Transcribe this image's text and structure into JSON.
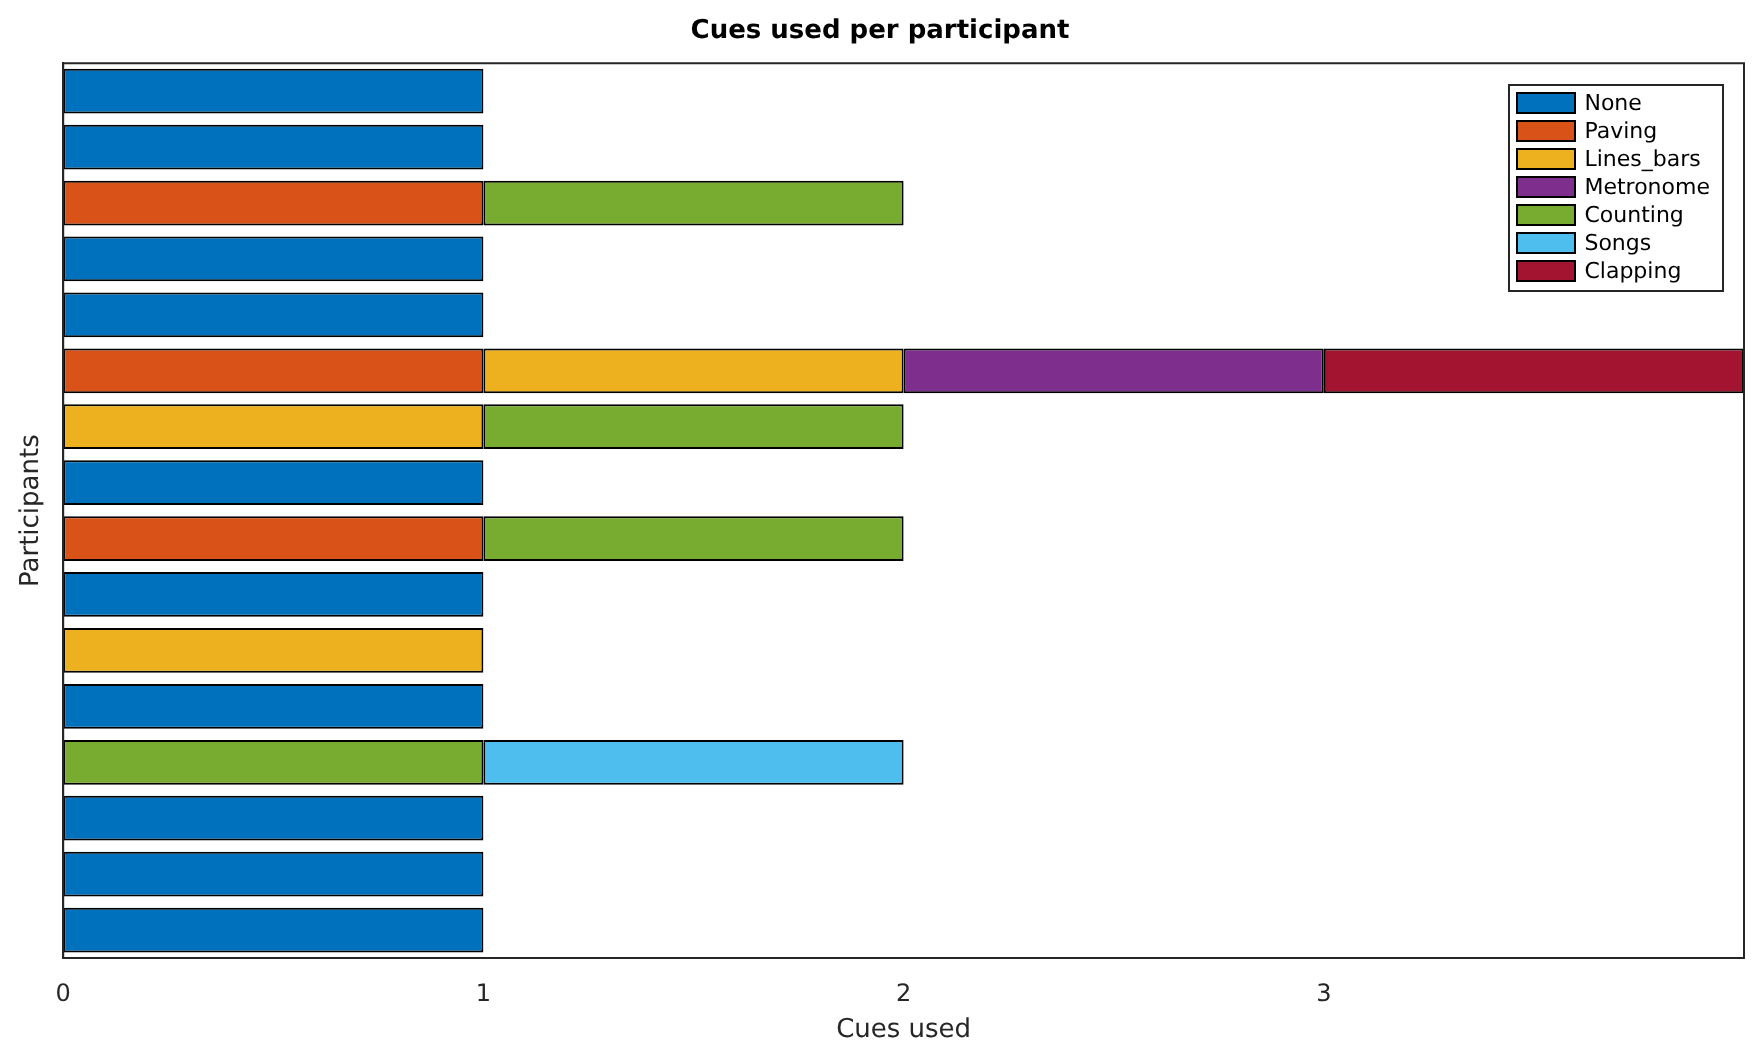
{
  "chart_data": {
    "type": "bar",
    "orientation": "horizontal",
    "stacked": true,
    "title": "Cues used per participant",
    "xlabel": "Cues used",
    "ylabel": "Participants",
    "categories": [
      null,
      null,
      null,
      null,
      null,
      null,
      null,
      null,
      null,
      null,
      null,
      null,
      null,
      null,
      null,
      null
    ],
    "series": [
      {
        "name": "None",
        "color": "#0072bd",
        "values": [
          1,
          1,
          null,
          1,
          1,
          null,
          null,
          1,
          null,
          1,
          null,
          1,
          null,
          1,
          1,
          1
        ]
      },
      {
        "name": "Paving",
        "color": "#d95319",
        "values": [
          null,
          null,
          1,
          null,
          null,
          1,
          null,
          null,
          1,
          null,
          null,
          null,
          null,
          null,
          null,
          null
        ]
      },
      {
        "name": "Lines_bars",
        "color": "#edb120",
        "values": [
          null,
          null,
          null,
          null,
          null,
          1,
          1,
          null,
          null,
          null,
          1,
          null,
          null,
          null,
          null,
          null
        ]
      },
      {
        "name": "Metronome",
        "color": "#7e2f8e",
        "values": [
          null,
          null,
          null,
          null,
          null,
          1,
          null,
          null,
          null,
          null,
          null,
          null,
          null,
          null,
          null,
          null
        ]
      },
      {
        "name": "Counting",
        "color": "#77ac30",
        "values": [
          null,
          null,
          1,
          null,
          null,
          null,
          1,
          null,
          1,
          null,
          null,
          null,
          1,
          null,
          null,
          null
        ]
      },
      {
        "name": "Songs",
        "color": "#4dbeee",
        "values": [
          null,
          null,
          null,
          null,
          null,
          null,
          null,
          null,
          null,
          null,
          null,
          null,
          1,
          null,
          null,
          null
        ]
      },
      {
        "name": "Clapping",
        "color": "#a2142f",
        "values": [
          null,
          null,
          null,
          null,
          null,
          1,
          null,
          null,
          null,
          null,
          null,
          null,
          null,
          null,
          null,
          null
        ]
      }
    ],
    "xlim": [
      0,
      4
    ],
    "xticks": [
      0,
      1,
      2,
      3
    ],
    "grid": false,
    "legend": "top right",
    "tick_labels": "x"
  }
}
